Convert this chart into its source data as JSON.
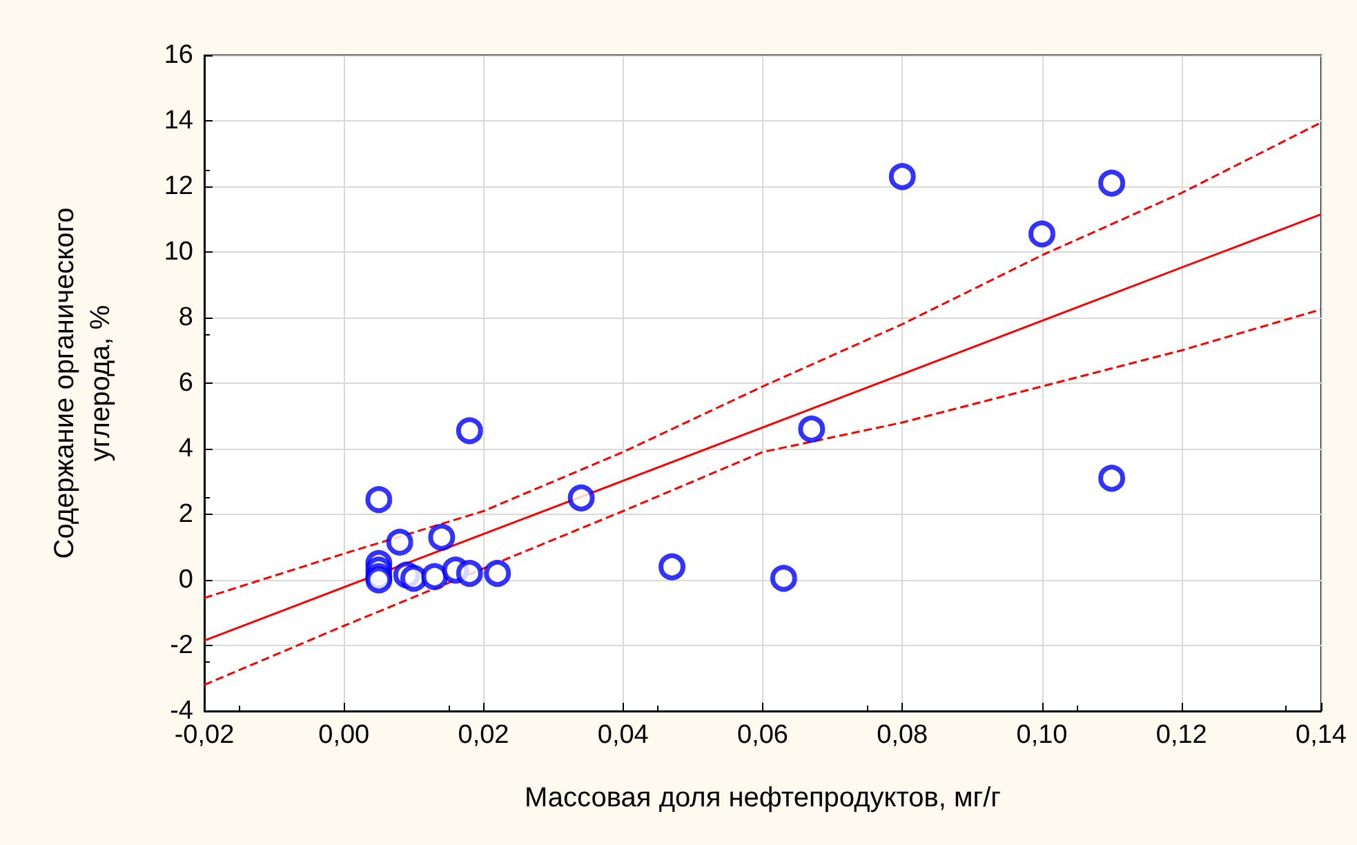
{
  "chart_data": {
    "type": "scatter",
    "xlabel": "Массовая доля нефтепродуктов, мг/г",
    "ylabel": "Содержание органического\nуглерода, %",
    "xlim": [
      -0.02,
      0.14
    ],
    "ylim": [
      -4,
      16
    ],
    "xticks": [
      {
        "value": -0.02,
        "label": "-0,02"
      },
      {
        "value": 0,
        "label": "0,00"
      },
      {
        "value": 0.02,
        "label": "0,02"
      },
      {
        "value": 0.04,
        "label": "0,04"
      },
      {
        "value": 0.06,
        "label": "0,06"
      },
      {
        "value": 0.08,
        "label": "0,08"
      },
      {
        "value": 0.1,
        "label": "0,10"
      },
      {
        "value": 0.12,
        "label": "0,12"
      },
      {
        "value": 0.14,
        "label": "0,14"
      }
    ],
    "yticks": [
      -4,
      -2,
      0,
      2,
      4,
      6,
      8,
      10,
      12,
      14,
      16
    ],
    "grid": true,
    "marker": "circle",
    "series": [
      {
        "color": "#0000ff",
        "x": [
          0.005,
          0.005,
          0.005,
          0.005,
          0.005,
          0.008,
          0.009,
          0.01,
          0.013,
          0.014,
          0.016,
          0.018,
          0.018,
          0.022,
          0.034,
          0.047,
          0.063,
          0.067,
          0.08,
          0.1,
          0.11,
          0.11
        ],
        "values": [
          2.45,
          0.5,
          0.3,
          0.1,
          0.0,
          1.15,
          0.15,
          0.05,
          0.1,
          1.3,
          0.3,
          0.2,
          4.55,
          0.2,
          2.5,
          0.4,
          0.05,
          4.6,
          12.3,
          10.55,
          12.1,
          3.1
        ]
      },
      {
        "type": "line",
        "color": "#ff0000",
        "line_style": "solid",
        "marker": "none",
        "x": [
          -0.02,
          0.14
        ],
        "values": [
          -1.85,
          11.15
        ]
      },
      {
        "type": "line",
        "color": "#ff0000",
        "line_style": "dashed",
        "marker": "none",
        "x": [
          -0.02,
          0,
          0.02,
          0.04,
          0.06,
          0.08,
          0.1,
          0.12,
          0.14
        ],
        "values": [
          -0.55,
          0.8,
          2.1,
          3.9,
          5.9,
          7.8,
          9.9,
          11.8,
          13.95
        ]
      },
      {
        "type": "line",
        "color": "#ff0000",
        "line_style": "dashed",
        "marker": "none",
        "x": [
          -0.02,
          0,
          0.02,
          0.04,
          0.06,
          0.08,
          0.1,
          0.12,
          0.14
        ],
        "values": [
          -3.2,
          -1.4,
          0.35,
          2.1,
          3.9,
          4.8,
          5.9,
          7.0,
          8.25
        ]
      }
    ]
  }
}
